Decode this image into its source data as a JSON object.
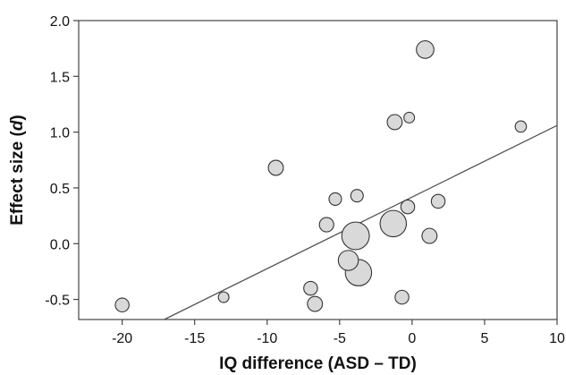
{
  "chart_data": {
    "type": "scatter",
    "title": "",
    "xlabel": "IQ difference (ASD – TD)",
    "ylabel_prefix": "Effect size (",
    "ylabel_symbol": "d",
    "ylabel_suffix": ")",
    "xlim": [
      -23,
      10
    ],
    "ylim": [
      -0.68,
      2.0
    ],
    "xticks": [
      -20,
      -15,
      -10,
      -5,
      0,
      5,
      10
    ],
    "yticks": [
      -0.5,
      0.0,
      0.5,
      1.0,
      1.5,
      2.0
    ],
    "ytick_labels": [
      "-0.5",
      "0.0",
      "0.5",
      "1.0",
      "1.5",
      "2.0"
    ],
    "grid": false,
    "legend": "none",
    "marker_fill": "#d9d9d9",
    "marker_stroke": "#333333",
    "line_color": "#555555",
    "points": [
      {
        "x": -20.0,
        "y": -0.55,
        "size": 1.1
      },
      {
        "x": -13.0,
        "y": -0.48,
        "size": 0.85
      },
      {
        "x": -9.4,
        "y": 0.68,
        "size": 1.2
      },
      {
        "x": -7.0,
        "y": -0.4,
        "size": 1.1
      },
      {
        "x": -6.7,
        "y": -0.54,
        "size": 1.2
      },
      {
        "x": -5.9,
        "y": 0.17,
        "size": 1.15
      },
      {
        "x": -5.3,
        "y": 0.4,
        "size": 1.0
      },
      {
        "x": -4.4,
        "y": -0.15,
        "size": 1.6
      },
      {
        "x": -3.9,
        "y": 0.07,
        "size": 2.2
      },
      {
        "x": -3.8,
        "y": 0.43,
        "size": 1.0
      },
      {
        "x": -3.7,
        "y": -0.26,
        "size": 2.1
      },
      {
        "x": -1.3,
        "y": 0.18,
        "size": 2.1
      },
      {
        "x": -1.2,
        "y": 1.09,
        "size": 1.2
      },
      {
        "x": -0.7,
        "y": -0.48,
        "size": 1.1
      },
      {
        "x": -0.3,
        "y": 0.33,
        "size": 1.1
      },
      {
        "x": -0.2,
        "y": 1.13,
        "size": 0.85
      },
      {
        "x": 0.9,
        "y": 1.74,
        "size": 1.4
      },
      {
        "x": 1.2,
        "y": 0.07,
        "size": 1.2
      },
      {
        "x": 1.8,
        "y": 0.38,
        "size": 1.1
      },
      {
        "x": 7.5,
        "y": 1.05,
        "size": 0.9
      }
    ],
    "regression_line": {
      "x": [
        -17.1,
        10.0
      ],
      "y": [
        -0.68,
        1.06
      ]
    }
  }
}
